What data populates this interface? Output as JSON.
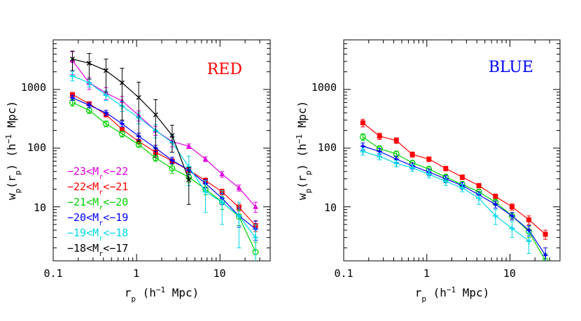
{
  "colors": {
    "m23": "#e000e0",
    "m22": "#ff0000",
    "m21": "#00d000",
    "m20": "#0000ff",
    "m19": "#00d8e8",
    "m18": "#000000",
    "red_title": "#ff0000",
    "blue_title": "#0000ff"
  },
  "chart_data": [
    {
      "type": "line",
      "title": "RED",
      "xlabel": "r_p (h^-1 Mpc)",
      "ylabel": "w_p(r_p) (h^-1 Mpc)",
      "xscale": "log",
      "yscale": "log",
      "xlim": [
        0.1,
        40
      ],
      "ylim": [
        1.2,
        7000
      ],
      "x_tick_labels": [
        "0.1",
        "1",
        "10"
      ],
      "y_tick_labels": [
        "10",
        "100",
        "1000"
      ],
      "legend_position": "bottom-left",
      "series": [
        {
          "key": "m23",
          "name": "−23<M_r<−22",
          "color": "#e000e0",
          "marker": "triangle",
          "x": [
            0.17,
            0.27,
            0.43,
            0.67,
            1.06,
            1.69,
            2.67,
            4.23,
            6.7,
            10.6,
            16.9,
            26.7
          ],
          "y": [
            3100,
            1300,
            870,
            640,
            360,
            200,
            130,
            108,
            65,
            36,
            21,
            10
          ],
          "err": [
            1300,
            300,
            200,
            120,
            70,
            35,
            25,
            10,
            6,
            4,
            2.5,
            2
          ]
        },
        {
          "key": "m22",
          "name": "−22<M_r<−21",
          "color": "#ff0000",
          "marker": "square",
          "x": [
            0.17,
            0.27,
            0.43,
            0.67,
            1.06,
            1.69,
            2.67,
            4.23,
            6.7,
            10.6,
            16.9,
            26.7
          ],
          "y": [
            820,
            570,
            370,
            210,
            130,
            85,
            60,
            42,
            28,
            18,
            9.8,
            4.8
          ],
          "err": [
            60,
            40,
            30,
            20,
            12,
            8,
            6,
            4,
            3,
            2,
            1.3,
            1
          ]
        },
        {
          "key": "m21",
          "name": "−21<M_r<−20",
          "color": "#00d000",
          "marker": "circle",
          "x": [
            0.17,
            0.27,
            0.43,
            0.67,
            1.06,
            1.69,
            2.67,
            4.23,
            6.7,
            10.6,
            16.9,
            26.7
          ],
          "y": [
            600,
            440,
            260,
            175,
            115,
            68,
            45,
            32,
            20,
            12,
            6.8,
            1.7
          ],
          "err": [
            80,
            50,
            30,
            20,
            12,
            8,
            8,
            6,
            4,
            3,
            2,
            0.8
          ]
        },
        {
          "key": "m20",
          "name": "−20<M_r<−19",
          "color": "#0000ff",
          "marker": "star",
          "x": [
            0.17,
            0.27,
            0.43,
            0.67,
            1.06,
            1.69,
            2.67,
            4.23,
            6.7,
            10.6,
            16.9,
            26.7
          ],
          "y": [
            720,
            540,
            400,
            260,
            160,
            100,
            62,
            42,
            25,
            14,
            7,
            4.2
          ],
          "err": [
            70,
            50,
            40,
            30,
            20,
            12,
            8,
            6,
            4,
            3,
            2.5,
            1.5
          ]
        },
        {
          "key": "m19",
          "name": "−19<M_r<−18",
          "color": "#00d8e8",
          "marker": "cross",
          "x": [
            0.17,
            0.27,
            0.43,
            0.67,
            1.06,
            1.69,
            2.67,
            4.23,
            6.7,
            10.6,
            16.9,
            26.7
          ],
          "y": [
            1700,
            1300,
            800,
            520,
            330,
            200,
            125,
            48,
            18,
            12,
            7,
            3
          ],
          "err": [
            300,
            200,
            150,
            100,
            70,
            50,
            40,
            25,
            10,
            7,
            5,
            2
          ]
        },
        {
          "key": "m18",
          "name": "−18<M_r<−17",
          "color": "#000000",
          "marker": "x",
          "x": [
            0.17,
            0.27,
            0.43,
            0.67,
            1.06,
            1.69,
            2.67,
            4.23
          ],
          "y": [
            3300,
            2800,
            2100,
            1300,
            730,
            370,
            165,
            29
          ],
          "err": [
            1200,
            1300,
            1200,
            1000,
            600,
            300,
            80,
            18
          ]
        }
      ]
    },
    {
      "type": "line",
      "title": "BLUE",
      "xlabel": "r_p (h^-1 Mpc)",
      "ylabel": "w_p(r_p) (h^-1 Mpc)",
      "xscale": "log",
      "yscale": "log",
      "xlim": [
        0.1,
        40
      ],
      "ylim": [
        1.2,
        7000
      ],
      "x_tick_labels": [
        "0.1",
        "1",
        "10"
      ],
      "y_tick_labels": [
        "10",
        "100",
        "1000"
      ],
      "series": [
        {
          "key": "m22",
          "color": "#ff0000",
          "marker": "square",
          "x": [
            0.17,
            0.27,
            0.43,
            0.67,
            1.06,
            1.69,
            2.67,
            4.23,
            6.7,
            10.6,
            16.9,
            26.7
          ],
          "y": [
            270,
            160,
            135,
            78,
            65,
            45,
            32,
            23,
            15,
            10,
            6,
            3.4
          ],
          "err": [
            40,
            20,
            15,
            8,
            6,
            4,
            3,
            2,
            1.5,
            1.2,
            1,
            0.6
          ]
        },
        {
          "key": "m21",
          "color": "#00d000",
          "marker": "circle",
          "x": [
            0.17,
            0.27,
            0.43,
            0.67,
            1.06,
            1.69,
            2.67,
            4.23,
            6.7,
            10.6,
            16.9,
            26.7
          ],
          "y": [
            155,
            98,
            80,
            56,
            44,
            32,
            24,
            18,
            12,
            7,
            3.8,
            1.2
          ],
          "err": [
            20,
            12,
            9,
            6,
            5,
            4,
            3,
            2,
            1.5,
            1,
            0.8,
            0.4
          ]
        },
        {
          "key": "m20",
          "color": "#0000ff",
          "marker": "star",
          "x": [
            0.17,
            0.27,
            0.43,
            0.67,
            1.06,
            1.69,
            2.67,
            4.23,
            6.7,
            10.6,
            16.9,
            26.7
          ],
          "y": [
            108,
            88,
            65,
            50,
            39,
            30,
            23,
            16,
            11,
            7,
            4,
            1.5
          ],
          "err": [
            15,
            10,
            8,
            6,
            5,
            4,
            3,
            2,
            1.5,
            1,
            0.8,
            0.5
          ]
        },
        {
          "key": "m19",
          "color": "#00d8e8",
          "marker": "cross",
          "x": [
            0.17,
            0.27,
            0.43,
            0.67,
            1.06,
            1.69,
            2.67,
            4.23,
            6.7,
            10.6,
            16.9
          ],
          "y": [
            88,
            72,
            55,
            46,
            36,
            27,
            21,
            14,
            7,
            4.3,
            2.6
          ],
          "err": [
            12,
            9,
            7,
            6,
            5,
            4,
            3,
            3,
            2,
            1.3,
            1
          ]
        }
      ]
    }
  ]
}
